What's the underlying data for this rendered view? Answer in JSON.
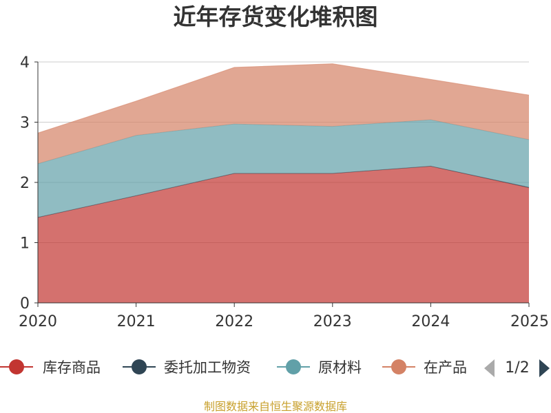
{
  "source_text": "制图数据来自恒生聚源数据库",
  "chart_data": {
    "type": "area",
    "stacked": true,
    "title": "近年存货变化堆积图",
    "x": [
      "2020",
      "2021",
      "2022",
      "2023",
      "2024",
      "2025"
    ],
    "ylim": [
      0,
      4
    ],
    "yticks": [
      "0",
      "1",
      "2",
      "3",
      "4"
    ],
    "grid": true,
    "legend_placement": "bottom",
    "series": [
      {
        "name": "库存商品",
        "color": "#c23531",
        "values": [
          1.42,
          1.78,
          2.15,
          2.15,
          2.27,
          1.91
        ]
      },
      {
        "name": "委托加工物资",
        "color": "#2f4554",
        "values": [
          0.0,
          0.0,
          0.0,
          0.0,
          0.0,
          0.01
        ]
      },
      {
        "name": "原材料",
        "color": "#61a0a8",
        "values": [
          0.89,
          1.0,
          0.82,
          0.78,
          0.77,
          0.79
        ]
      },
      {
        "name": "在产品",
        "color": "#d48265",
        "values": [
          0.51,
          0.57,
          0.94,
          1.04,
          0.67,
          0.74
        ]
      }
    ],
    "legend": {
      "items": [
        "库存商品",
        "委托加工物资",
        "原材料",
        "在产品"
      ],
      "page_label": "1/2"
    }
  }
}
